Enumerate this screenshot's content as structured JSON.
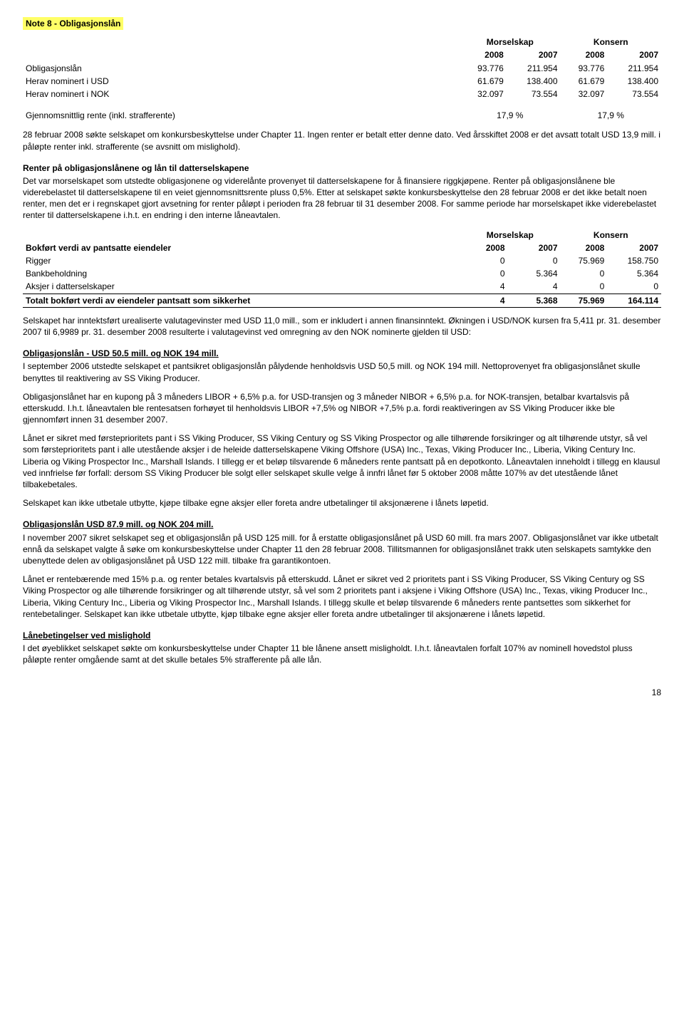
{
  "note_title": "Note 8 - Obligasjonslån",
  "tbl1": {
    "grp1": "Morselskap",
    "grp2": "Konsern",
    "years": [
      "2008",
      "2007",
      "2008",
      "2007"
    ],
    "rows": [
      {
        "label": "Obligasjonslån",
        "v": [
          "93.776",
          "211.954",
          "93.776",
          "211.954"
        ]
      },
      {
        "label": "Herav nominert i USD",
        "v": [
          "61.679",
          "138.400",
          "61.679",
          "138.400"
        ]
      },
      {
        "label": "Herav nominert i NOK",
        "v": [
          "32.097",
          "73.554",
          "32.097",
          "73.554"
        ]
      }
    ],
    "rate_label": "Gjennomsnittlig rente (inkl. strafferente)",
    "rate_v1": "17,9 %",
    "rate_v2": "17,9 %"
  },
  "para1": "28 februar 2008 søkte selskapet om konkursbeskyttelse under Chapter 11. Ingen renter er betalt etter denne dato. Ved årsskiftet 2008 er det avsatt totalt USD 13,9 mill. i påløpte renter inkl. strafferente (se avsnitt om mislighold).",
  "head1": "Renter på obligasjonslånene og lån til datterselskapene",
  "para2": "Det var morselskapet som utstedte obligasjonene og viderelånte provenyet til datterselskapene for å finansiere riggkjøpene. Renter på obligasjonslånene ble viderebelastet til datterselskapene til en veiet gjennomsnittsrente pluss 0,5%. Etter at selskapet søkte konkursbeskyttelse den 28 februar 2008 er det ikke betalt noen renter, men det er i regnskapet gjort avsetning for renter påløpt i perioden fra 28 februar til 31 desember 2008. For samme periode har morselskapet ikke viderebelastet renter til datterselskapene i.h.t. en endring i den interne låneavtalen.",
  "tbl2": {
    "grp1": "Morselskap",
    "grp2": "Konsern",
    "hdr_label": "Bokført verdi av pantsatte eiendeler",
    "years": [
      "2008",
      "2007",
      "2008",
      "2007"
    ],
    "rows": [
      {
        "label": "Rigger",
        "v": [
          "0",
          "0",
          "75.969",
          "158.750"
        ]
      },
      {
        "label": "Bankbeholdning",
        "v": [
          "0",
          "5.364",
          "0",
          "5.364"
        ]
      },
      {
        "label": "Aksjer i datterselskaper",
        "v": [
          "4",
          "4",
          "0",
          "0"
        ]
      }
    ],
    "total_label": "Totalt bokført verdi av eiendeler pantsatt som sikkerhet",
    "total_v": [
      "4",
      "5.368",
      "75.969",
      "164.114"
    ]
  },
  "para3": "Selskapet har inntektsført urealiserte valutagevinster med USD 11,0 mill., som er inkludert i annen finansinntekt. Økningen i USD/NOK kursen fra 5,411 pr. 31. desember 2007 til 6,9989 pr. 31. desember 2008 resulterte i valutagevinst ved omregning av den NOK nominerte gjelden til USD:",
  "head2": "Obligasjonslån - USD 50.5 mill. og NOK 194 mill.",
  "para4": "I september 2006 utstedte selskapet et pantsikret obligasjonslån pålydende henholdsvis USD 50,5 mill. og NOK 194 mill. Nettoprovenyet fra obligasjonslånet skulle benyttes til reaktivering av SS Viking Producer.",
  "para5": "Obligasjonslånet har en kupong på 3 måneders LIBOR + 6,5% p.a. for USD-transjen og 3 måneder NIBOR + 6,5% p.a. for NOK-transjen, betalbar kvartalsvis på etterskudd. I.h.t. låneavtalen ble rentesatsen forhøyet til henholdsvis LIBOR +7,5% og NIBOR +7,5% p.a. fordi reaktiveringen av SS Viking Producer ikke ble gjennomført innen 31 desember 2007.",
  "para6": "Lånet er sikret med førsteprioritets pant i SS Viking Producer, SS Viking Century og SS Viking Prospector og alle tilhørende forsikringer og alt tilhørende utstyr, så vel som førsteprioritets pant i alle utestående aksjer i de heleide datterselskapene Viking Offshore (USA) Inc., Texas, Viking Producer Inc., Liberia, Viking Century Inc. Liberia og Viking Prospector Inc., Marshall Islands. I tillegg er et beløp tilsvarende 6 måneders rente pantsatt på en depotkonto. Låneavtalen inneholdt i tillegg en klausul ved innfrielse før forfall: dersom SS Viking Producer ble solgt eller selskapet skulle velge å innfri lånet før 5 oktober 2008 måtte 107% av det utestående lånet tilbakebetales.",
  "para7": "Selskapet kan ikke utbetale utbytte, kjøpe tilbake egne aksjer eller foreta andre utbetalinger til aksjonærene i lånets løpetid.",
  "head3": "Obligasjonslån USD 87.9 mill. og NOK 204 mill.",
  "para8": "I november 2007 sikret selskapet seg et obligasjonslån på USD 125 mill. for å erstatte obligasjonslånet på USD 60 mill. fra mars 2007. Obligasjonslånet var ikke utbetalt ennå da selskapet valgte å søke om konkursbeskyttelse under Chapter 11 den 28 februar 2008. Tillitsmannen for obligasjonslånet trakk uten selskapets samtykke den ubenyttede delen av obligasjonslånet på USD 122 mill. tilbake fra garantikontoen.",
  "para9": "Lånet er rentebærende med 15% p.a. og renter betales kvartalsvis på etterskudd. Lånet er sikret ved 2 prioritets pant i SS Viking Producer, SS Viking Century og SS Viking Prospector og alle tilhørende forsikringer og alt tilhørende utstyr, så vel som 2 prioritets pant i aksjene i Viking Offshore (USA) Inc., Texas, viking Producer Inc., Liberia, Viking Century Inc., Liberia og Viking Prospector Inc., Marshall Islands. I tillegg skulle et beløp tilsvarende 6 måneders rente pantsettes som sikkerhet for rentebetalinger. Selskapet kan ikke utbetale utbytte, kjøp tilbake egne aksjer eller foreta andre utbetalinger til aksjonærene i lånets løpetid.",
  "head4": "Lånebetingelser ved mislighold",
  "para10": "I det øyeblikket selskapet søkte om konkursbeskyttelse under Chapter 11 ble lånene ansett misligholdt. I.h.t. låneavtalen forfalt 107% av nominell hovedstol pluss påløpte renter omgående samt at det skulle betales 5% strafferente på alle lån.",
  "page_number": "18"
}
